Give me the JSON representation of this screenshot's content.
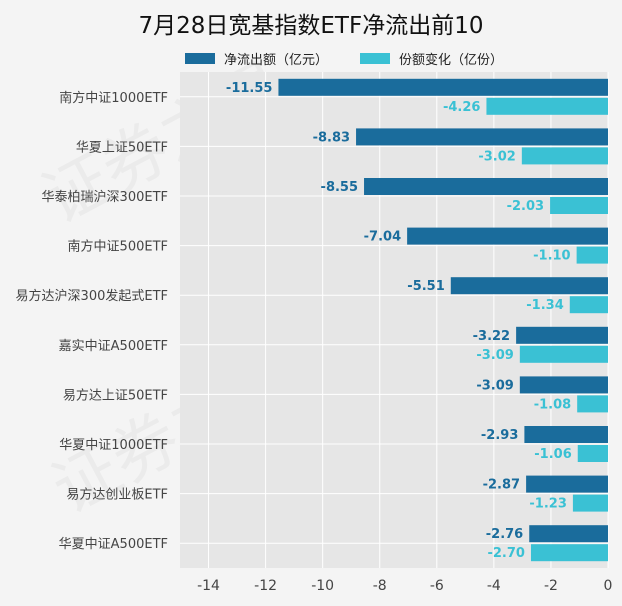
{
  "chart_data": {
    "type": "bar",
    "orientation": "horizontal",
    "title": "7月28日宽基指数ETF净流出前10",
    "categories": [
      "南方中证1000ETF",
      "华夏上证50ETF",
      "华泰柏瑞沪深300ETF",
      "南方中证500ETF",
      "易方达沪深300发起式ETF",
      "嘉实中证A500ETF",
      "易方达上证50ETF",
      "华夏中证1000ETF",
      "易方达创业板ETF",
      "华夏中证A500ETF"
    ],
    "series": [
      {
        "name": "净流出额（亿元）",
        "values": [
          -11.55,
          -8.83,
          -8.55,
          -7.04,
          -5.51,
          -3.22,
          -3.09,
          -2.93,
          -2.87,
          -2.76
        ],
        "labels": [
          "-11.55",
          "-8.83",
          "-8.55",
          "-7.04",
          "-5.51",
          "-3.22",
          "-3.09",
          "-2.93",
          "-2.87",
          "-2.76"
        ],
        "color": "#1a6c9c"
      },
      {
        "name": "份额变化（亿份）",
        "values": [
          -4.26,
          -3.02,
          -2.03,
          -1.1,
          -1.34,
          -3.09,
          -1.08,
          -1.06,
          -1.23,
          -2.7
        ],
        "labels": [
          "-4.26",
          "-3.02",
          "-2.03",
          "-1.10",
          "-1.34",
          "-3.09",
          "-1.08",
          "-1.06",
          "-1.23",
          "-2.70"
        ],
        "color": "#3ac1d4"
      }
    ],
    "xlim": [
      -15,
      0
    ],
    "xticks": [
      -14,
      -12,
      -10,
      -8,
      -6,
      -4,
      -2,
      0
    ],
    "xtick_labels": [
      "-14",
      "-12",
      "-10",
      "-8",
      "-6",
      "-4",
      "-2",
      "0"
    ],
    "grid": true,
    "legend": "top-center"
  },
  "watermark_text": "证券之星"
}
